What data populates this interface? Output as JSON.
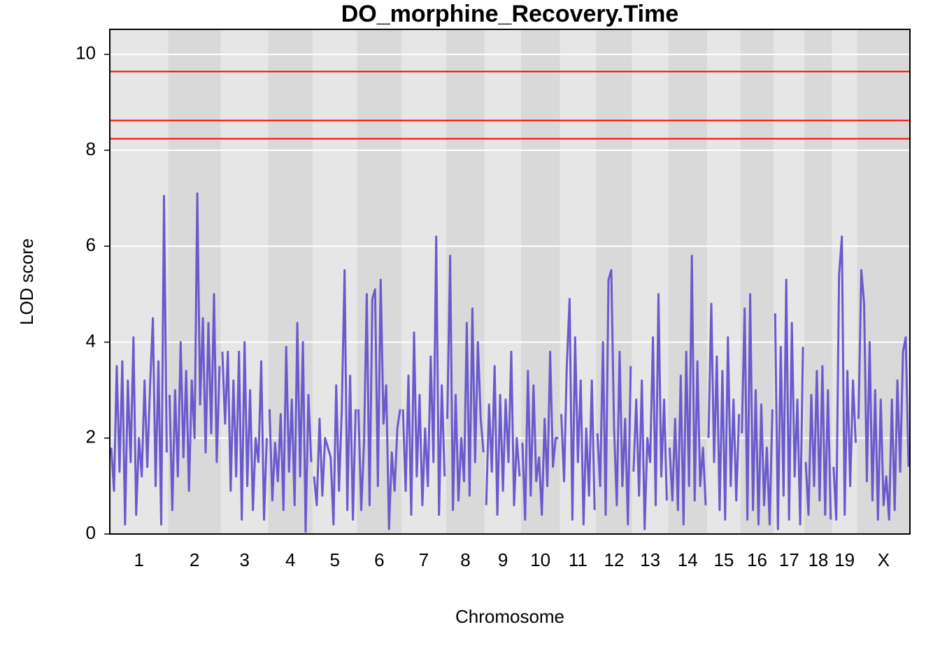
{
  "chart_data": {
    "type": "line",
    "title": "DO_morphine_Recovery.Time",
    "x_label": "Chromosome",
    "y_label": "LOD score",
    "ylim": [
      0,
      10.52
    ],
    "yticks": [
      0,
      2,
      4,
      6,
      8,
      10
    ],
    "grid": true,
    "line_color": "#6a5acd",
    "threshold_color": "#ff0000",
    "thresholds": [
      9.64,
      8.62,
      8.24
    ],
    "chromosomes": [
      {
        "label": "1",
        "values": [
          1.8,
          0.9,
          3.5,
          1.3,
          3.6,
          0.2,
          3.2,
          1.5,
          4.1,
          0.4,
          2.0,
          1.2,
          3.2,
          1.4,
          3.1,
          4.5,
          1.0,
          3.6,
          0.2,
          7.05,
          1.7
        ]
      },
      {
        "label": "2",
        "values": [
          2.9,
          0.5,
          3.0,
          1.2,
          4.0,
          1.6,
          3.4,
          0.9,
          3.2,
          2.0,
          7.1,
          2.7,
          4.5,
          1.7,
          4.4,
          2.1,
          5.0,
          1.5,
          3.5
        ]
      },
      {
        "label": "3",
        "values": [
          3.8,
          2.3,
          3.8,
          0.9,
          3.2,
          1.2,
          3.8,
          0.3,
          4.0,
          1.0,
          3.0,
          0.5,
          2.0,
          1.5,
          3.6,
          0.3,
          2.0
        ]
      },
      {
        "label": "4",
        "values": [
          2.6,
          0.7,
          1.9,
          1.1,
          2.5,
          0.5,
          3.9,
          1.3,
          2.8,
          0.6,
          4.4,
          1.2,
          4.0,
          0.05,
          2.9,
          1.5
        ]
      },
      {
        "label": "5",
        "values": [
          1.2,
          0.6,
          2.4,
          0.8,
          2.0,
          1.8,
          1.6,
          0.2,
          3.1,
          0.9,
          2.6,
          5.5,
          0.5,
          3.3,
          0.3,
          2.6
        ]
      },
      {
        "label": "6",
        "values": [
          2.6,
          0.5,
          1.9,
          5.0,
          0.6,
          4.9,
          5.1,
          1.0,
          5.3,
          2.3,
          3.1,
          0.1,
          1.7,
          0.9,
          2.2,
          2.6
        ]
      },
      {
        "label": "7",
        "values": [
          2.6,
          0.9,
          3.3,
          0.4,
          4.2,
          1.2,
          2.9,
          0.6,
          2.2,
          1.0,
          3.7,
          1.5,
          6.2,
          0.4,
          3.1,
          1.2
        ]
      },
      {
        "label": "8",
        "values": [
          2.4,
          5.8,
          0.5,
          2.9,
          0.7,
          2.0,
          1.1,
          4.4,
          0.8,
          4.7,
          1.5,
          4.0,
          2.4,
          1.7
        ]
      },
      {
        "label": "9",
        "values": [
          0.6,
          2.7,
          1.3,
          3.5,
          0.4,
          2.9,
          0.9,
          2.8,
          1.5,
          3.8,
          0.6,
          2.0,
          1.2
        ]
      },
      {
        "label": "10",
        "values": [
          1.9,
          0.3,
          3.4,
          0.8,
          3.1,
          1.1,
          1.6,
          0.4,
          2.4,
          1.0,
          3.8,
          1.4,
          2.0,
          2.0
        ]
      },
      {
        "label": "11",
        "values": [
          2.5,
          1.1,
          3.5,
          4.9,
          0.3,
          4.1,
          1.5,
          3.2,
          0.2,
          2.2,
          0.8,
          3.2,
          0.5
        ]
      },
      {
        "label": "12",
        "values": [
          2.1,
          1.0,
          4.0,
          0.4,
          5.3,
          5.5,
          2.2,
          0.6,
          3.8,
          1.0,
          2.4,
          0.2,
          3.5
        ]
      },
      {
        "label": "13",
        "values": [
          1.3,
          2.8,
          0.8,
          3.2,
          0.1,
          2.0,
          1.5,
          4.1,
          0.6,
          5.0,
          1.2,
          2.8,
          0.7
        ]
      },
      {
        "label": "14",
        "values": [
          1.8,
          0.7,
          2.4,
          0.5,
          3.3,
          0.2,
          3.8,
          1.0,
          5.8,
          0.7,
          3.6,
          1.0,
          1.8,
          0.6
        ]
      },
      {
        "label": "15",
        "values": [
          2.0,
          4.8,
          1.5,
          3.7,
          0.5,
          3.4,
          0.3,
          4.1,
          1.0,
          2.8,
          0.7,
          2.5
        ]
      },
      {
        "label": "16",
        "values": [
          2.1,
          4.7,
          0.3,
          5.0,
          0.5,
          3.0,
          0.2,
          2.7,
          0.6,
          1.8,
          0.2,
          2.6
        ]
      },
      {
        "label": "17",
        "values": [
          4.6,
          0.1,
          3.9,
          0.8,
          5.3,
          0.3,
          4.4,
          1.2,
          2.8,
          0.2,
          3.9
        ]
      },
      {
        "label": "18",
        "values": [
          1.5,
          0.4,
          2.9,
          1.0,
          3.4,
          0.7,
          3.5,
          0.4,
          3.0,
          0.3
        ]
      },
      {
        "label": "19",
        "values": [
          1.4,
          0.3,
          5.4,
          6.2,
          0.4,
          3.4,
          1.0,
          3.2,
          1.9
        ]
      },
      {
        "label": "X",
        "values": [
          2.4,
          5.5,
          4.8,
          1.1,
          4.0,
          0.7,
          3.0,
          0.3,
          2.8,
          0.6,
          1.2,
          0.3,
          2.8,
          0.5,
          3.2,
          1.3,
          3.8,
          4.1,
          1.4
        ]
      }
    ]
  }
}
